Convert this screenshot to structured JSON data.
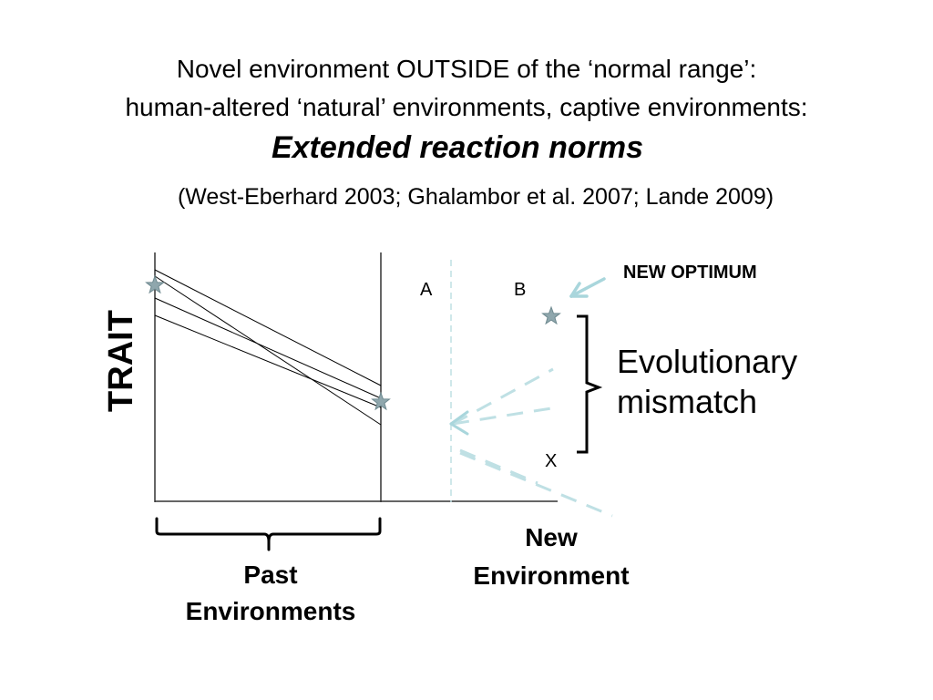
{
  "title": {
    "line1": "Novel environment OUTSIDE of the ‘normal range’:",
    "line2": "human-altered ‘natural’ environments, captive environments:",
    "line3": "Extended reaction norms",
    "citation": "(West-Eberhard 2003; Ghalambor et al. 2007; Lande 2009)"
  },
  "diagram": {
    "y_axis_label": "TRAIT",
    "label_a": "A",
    "label_b": "B",
    "label_x": "X",
    "new_optimum": "NEW OPTIMUM",
    "mismatch": "Evolutionary mismatch",
    "new_environment": "New Environment",
    "past_environments": "Past Environments"
  },
  "colors": {
    "line": "#000000",
    "axis": "#333333",
    "extension": "#bfe0e4",
    "arrow": "#a9d6dc",
    "star": "#8fa7ad",
    "star_stroke": "#6f8a90"
  }
}
